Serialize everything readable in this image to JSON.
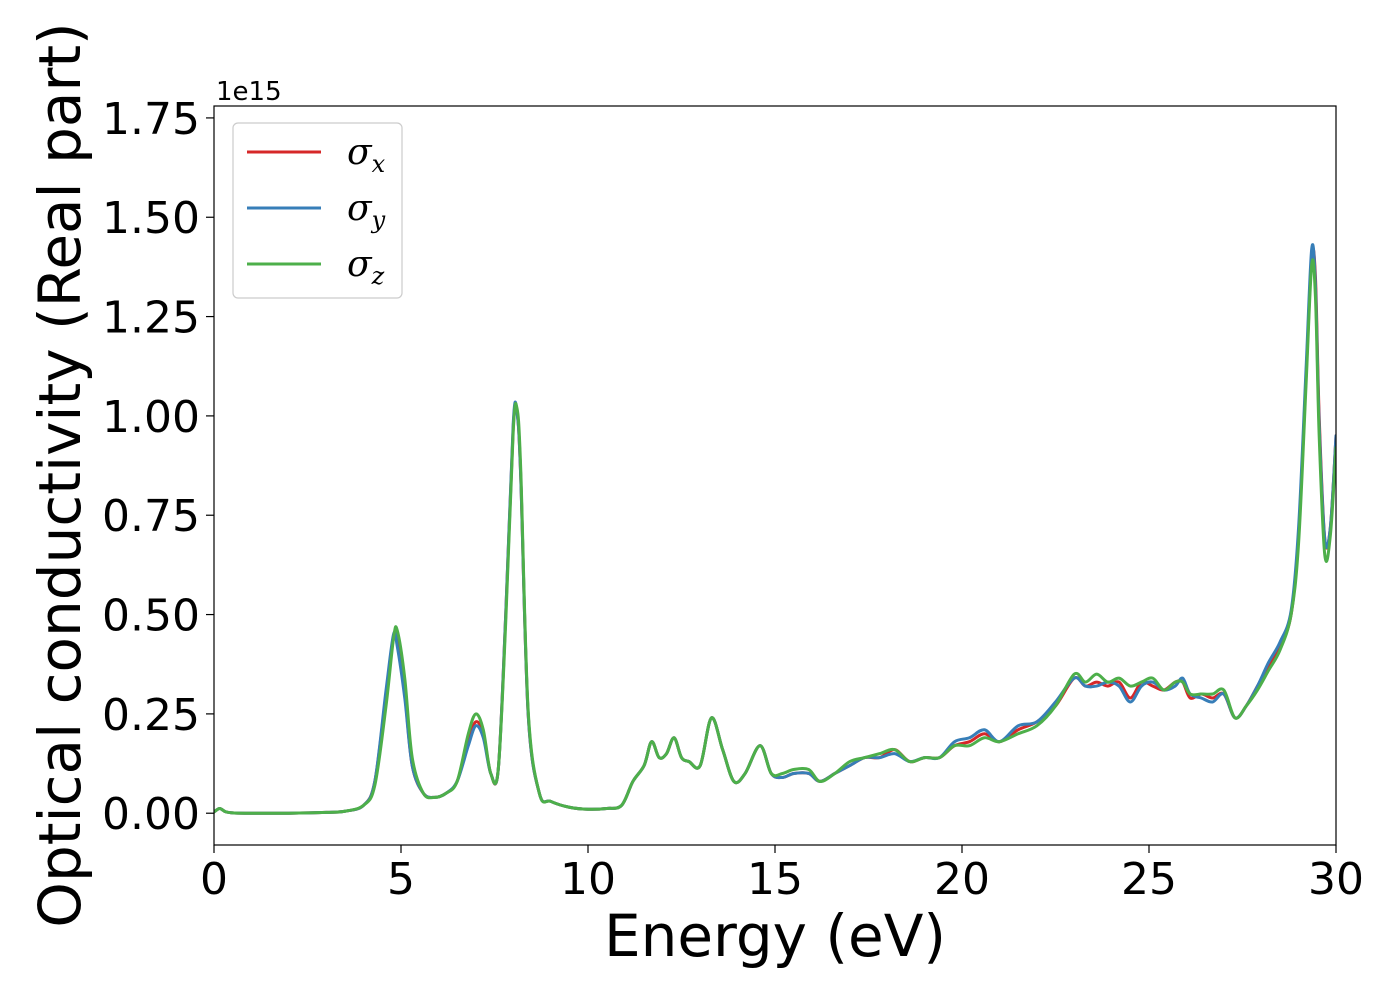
{
  "chart_data": {
    "type": "line",
    "title": "",
    "xlabel": "Energy (eV)",
    "ylabel": "Optical conductivity (Real part)",
    "y_offset_label": "1e15",
    "xlim": [
      0,
      30
    ],
    "ylim": [
      -0.08,
      1.78
    ],
    "x_ticks": [
      0,
      5,
      10,
      15,
      20,
      25,
      30
    ],
    "x_tick_labels": [
      "0",
      "5",
      "10",
      "15",
      "20",
      "25",
      "30"
    ],
    "y_ticks": [
      0.0,
      0.25,
      0.5,
      0.75,
      1.0,
      1.25,
      1.5,
      1.75
    ],
    "y_tick_labels": [
      "0.00",
      "0.25",
      "0.50",
      "0.75",
      "1.00",
      "1.25",
      "1.50",
      "1.75"
    ],
    "grid": false,
    "legend_position": "top-left",
    "series": [
      {
        "name": "σx",
        "label_main": "σ",
        "label_sub": "x",
        "color": "#d62728",
        "x": [
          0,
          0.15,
          0.3,
          0.5,
          1,
          2,
          3,
          3.5,
          4,
          4.3,
          4.6,
          4.8,
          4.9,
          5.1,
          5.3,
          5.6,
          5.9,
          6.2,
          6.5,
          6.8,
          7.0,
          7.2,
          7.4,
          7.6,
          7.8,
          8.0,
          8.1,
          8.2,
          8.4,
          8.7,
          9.0,
          9.5,
          10,
          10.5,
          10.9,
          11.2,
          11.5,
          11.7,
          11.9,
          12.1,
          12.3,
          12.5,
          12.7,
          13.0,
          13.3,
          13.6,
          13.9,
          14.2,
          14.6,
          14.9,
          15.2,
          15.5,
          15.9,
          16.2,
          16.6,
          17.0,
          17.4,
          17.8,
          18.2,
          18.6,
          19.0,
          19.4,
          19.8,
          20.2,
          20.6,
          21.0,
          21.5,
          22.0,
          22.5,
          23.0,
          23.3,
          23.6,
          23.9,
          24.2,
          24.5,
          24.8,
          25.1,
          25.4,
          25.7,
          25.9,
          26.1,
          26.4,
          26.7,
          27.0,
          27.3,
          27.6,
          27.9,
          28.2,
          28.5,
          28.8,
          29.0,
          29.2,
          29.35,
          29.45,
          29.55,
          29.7,
          29.85,
          30
        ],
        "y": [
          0.003,
          0.012,
          0.004,
          0.001,
          0,
          0,
          0.002,
          0.005,
          0.02,
          0.08,
          0.3,
          0.44,
          0.43,
          0.3,
          0.12,
          0.05,
          0.04,
          0.05,
          0.08,
          0.18,
          0.23,
          0.2,
          0.1,
          0.11,
          0.5,
          0.97,
          1.01,
          0.85,
          0.25,
          0.05,
          0.03,
          0.015,
          0.01,
          0.012,
          0.02,
          0.08,
          0.12,
          0.18,
          0.14,
          0.15,
          0.19,
          0.14,
          0.13,
          0.12,
          0.24,
          0.16,
          0.08,
          0.1,
          0.17,
          0.1,
          0.09,
          0.1,
          0.1,
          0.08,
          0.1,
          0.12,
          0.14,
          0.14,
          0.16,
          0.13,
          0.14,
          0.14,
          0.17,
          0.18,
          0.2,
          0.18,
          0.21,
          0.23,
          0.27,
          0.34,
          0.32,
          0.33,
          0.32,
          0.33,
          0.29,
          0.33,
          0.32,
          0.31,
          0.33,
          0.33,
          0.29,
          0.3,
          0.29,
          0.3,
          0.24,
          0.27,
          0.32,
          0.37,
          0.42,
          0.5,
          0.7,
          1.1,
          1.4,
          1.35,
          1.0,
          0.69,
          0.72,
          0.95
        ]
      },
      {
        "name": "σy",
        "label_main": "σ",
        "label_sub": "y",
        "color": "#377eb8",
        "x": [
          0,
          0.15,
          0.3,
          0.5,
          1,
          2,
          3,
          3.5,
          4,
          4.3,
          4.6,
          4.8,
          4.9,
          5.1,
          5.3,
          5.6,
          5.9,
          6.2,
          6.5,
          6.8,
          7.0,
          7.2,
          7.4,
          7.6,
          7.8,
          8.0,
          8.1,
          8.2,
          8.4,
          8.7,
          9.0,
          9.5,
          10,
          10.5,
          10.9,
          11.2,
          11.5,
          11.7,
          11.9,
          12.1,
          12.3,
          12.5,
          12.7,
          13.0,
          13.3,
          13.6,
          13.9,
          14.2,
          14.6,
          14.9,
          15.2,
          15.5,
          15.9,
          16.2,
          16.6,
          17.0,
          17.4,
          17.8,
          18.2,
          18.6,
          19.0,
          19.4,
          19.8,
          20.2,
          20.6,
          21.0,
          21.5,
          22.0,
          22.5,
          23.0,
          23.3,
          23.6,
          23.9,
          24.2,
          24.5,
          24.8,
          25.1,
          25.4,
          25.7,
          25.9,
          26.1,
          26.4,
          26.7,
          27.0,
          27.3,
          27.6,
          27.9,
          28.2,
          28.5,
          28.8,
          29.0,
          29.2,
          29.35,
          29.45,
          29.55,
          29.7,
          29.85,
          30
        ],
        "y": [
          0.003,
          0.012,
          0.004,
          0.001,
          0,
          0,
          0.002,
          0.005,
          0.02,
          0.08,
          0.31,
          0.45,
          0.42,
          0.29,
          0.12,
          0.05,
          0.04,
          0.05,
          0.08,
          0.17,
          0.22,
          0.19,
          0.1,
          0.11,
          0.5,
          0.98,
          1.01,
          0.85,
          0.25,
          0.05,
          0.03,
          0.015,
          0.01,
          0.012,
          0.02,
          0.08,
          0.12,
          0.18,
          0.14,
          0.15,
          0.19,
          0.14,
          0.13,
          0.12,
          0.24,
          0.16,
          0.08,
          0.1,
          0.17,
          0.1,
          0.09,
          0.1,
          0.1,
          0.08,
          0.1,
          0.12,
          0.14,
          0.14,
          0.15,
          0.13,
          0.14,
          0.14,
          0.18,
          0.19,
          0.21,
          0.18,
          0.22,
          0.23,
          0.28,
          0.34,
          0.32,
          0.32,
          0.33,
          0.32,
          0.28,
          0.32,
          0.33,
          0.31,
          0.32,
          0.34,
          0.3,
          0.29,
          0.28,
          0.3,
          0.24,
          0.27,
          0.32,
          0.38,
          0.43,
          0.51,
          0.72,
          1.12,
          1.42,
          1.33,
          0.98,
          0.69,
          0.72,
          0.95
        ]
      },
      {
        "name": "σz",
        "label_main": "σ",
        "label_sub": "z",
        "color": "#4daf4a",
        "x": [
          0,
          0.15,
          0.3,
          0.5,
          1,
          2,
          3,
          3.5,
          4,
          4.3,
          4.6,
          4.8,
          4.9,
          5.1,
          5.3,
          5.6,
          5.9,
          6.2,
          6.5,
          6.8,
          7.0,
          7.2,
          7.4,
          7.6,
          7.8,
          8.0,
          8.1,
          8.2,
          8.4,
          8.7,
          9.0,
          9.5,
          10,
          10.5,
          10.9,
          11.2,
          11.5,
          11.7,
          11.9,
          12.1,
          12.3,
          12.5,
          12.7,
          13.0,
          13.3,
          13.6,
          13.9,
          14.2,
          14.6,
          14.9,
          15.2,
          15.5,
          15.9,
          16.2,
          16.6,
          17.0,
          17.4,
          17.8,
          18.2,
          18.6,
          19.0,
          19.4,
          19.8,
          20.2,
          20.6,
          21.0,
          21.5,
          22.0,
          22.5,
          23.0,
          23.3,
          23.6,
          23.9,
          24.2,
          24.5,
          24.8,
          25.1,
          25.4,
          25.7,
          25.9,
          26.1,
          26.4,
          26.7,
          27.0,
          27.3,
          27.6,
          27.9,
          28.2,
          28.5,
          28.8,
          29.0,
          29.2,
          29.35,
          29.45,
          29.55,
          29.7,
          29.85,
          30
        ],
        "y": [
          0.003,
          0.012,
          0.004,
          0.001,
          0,
          0,
          0.002,
          0.005,
          0.02,
          0.07,
          0.27,
          0.44,
          0.46,
          0.34,
          0.14,
          0.05,
          0.04,
          0.05,
          0.08,
          0.2,
          0.25,
          0.21,
          0.1,
          0.11,
          0.48,
          0.96,
          1.02,
          0.87,
          0.26,
          0.05,
          0.03,
          0.015,
          0.01,
          0.012,
          0.02,
          0.08,
          0.12,
          0.18,
          0.14,
          0.15,
          0.19,
          0.14,
          0.13,
          0.12,
          0.24,
          0.16,
          0.08,
          0.1,
          0.17,
          0.1,
          0.1,
          0.11,
          0.11,
          0.08,
          0.1,
          0.13,
          0.14,
          0.15,
          0.16,
          0.13,
          0.14,
          0.14,
          0.17,
          0.17,
          0.19,
          0.18,
          0.2,
          0.22,
          0.27,
          0.35,
          0.33,
          0.35,
          0.33,
          0.34,
          0.32,
          0.33,
          0.34,
          0.31,
          0.33,
          0.33,
          0.3,
          0.3,
          0.3,
          0.31,
          0.24,
          0.27,
          0.31,
          0.36,
          0.41,
          0.5,
          0.68,
          1.08,
          1.38,
          1.3,
          0.95,
          0.65,
          0.7,
          0.92
        ]
      }
    ]
  }
}
